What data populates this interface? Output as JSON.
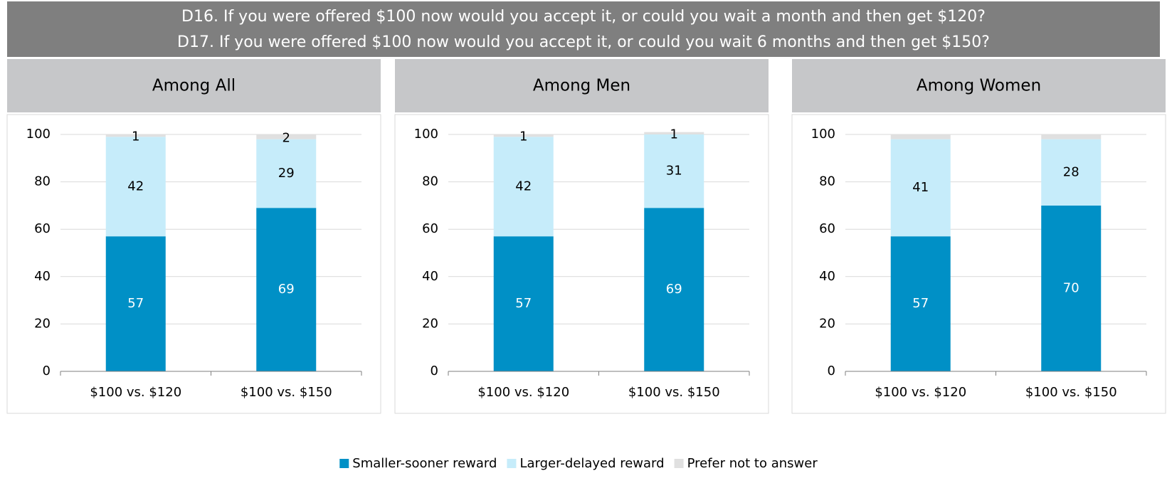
{
  "title_lines": [
    "D16. If you were offered $100 now would you accept it, or could you wait a month and then get $120?",
    "D17. If you were offered $100 now would you accept it, or could you wait 6 months and then get $150?"
  ],
  "chart_data": [
    {
      "type": "stacked_bar",
      "title": "Among All",
      "categories": [
        "$100 vs. $120",
        "$100 vs. $150"
      ],
      "series": [
        {
          "name": "Smaller-sooner reward",
          "color": "#0090c6",
          "values": [
            57,
            69
          ]
        },
        {
          "name": "Larger-delayed reward",
          "color": "#c6ecfa",
          "values": [
            42,
            29
          ]
        },
        {
          "name": "Prefer not to answer",
          "color": "#e0e0e0",
          "values": [
            1,
            2
          ]
        }
      ],
      "ylim": [
        0,
        100
      ],
      "yticks": [
        0,
        20,
        40,
        60,
        80,
        100
      ],
      "grid": true
    },
    {
      "type": "stacked_bar",
      "title": "Among Men",
      "categories": [
        "$100 vs. $120",
        "$100 vs. $150"
      ],
      "series": [
        {
          "color": "#0090c6",
          "values": [
            57,
            69
          ]
        },
        {
          "color": "#c6ecfa",
          "values": [
            42,
            31
          ]
        },
        {
          "color": "#e0e0e0",
          "values": [
            1,
            1
          ]
        }
      ],
      "ylim": [
        0,
        100
      ],
      "yticks": [
        0,
        20,
        40,
        60,
        80,
        100
      ],
      "grid": true
    },
    {
      "type": "stacked_bar",
      "title": "Among Women",
      "categories": [
        "$100 vs. $120",
        "$100 vs. $150"
      ],
      "series": [
        {
          "color": "#0090c6",
          "values": [
            57,
            70
          ]
        },
        {
          "color": "#c6ecfa",
          "values": [
            41,
            28
          ]
        },
        {
          "color": "#e0e0e0",
          "values": [
            2,
            2
          ],
          "value_labels": [
            null,
            null
          ]
        }
      ],
      "ylim": [
        0,
        100
      ],
      "yticks": [
        0,
        20,
        40,
        60,
        80,
        100
      ],
      "grid": true
    }
  ]
}
